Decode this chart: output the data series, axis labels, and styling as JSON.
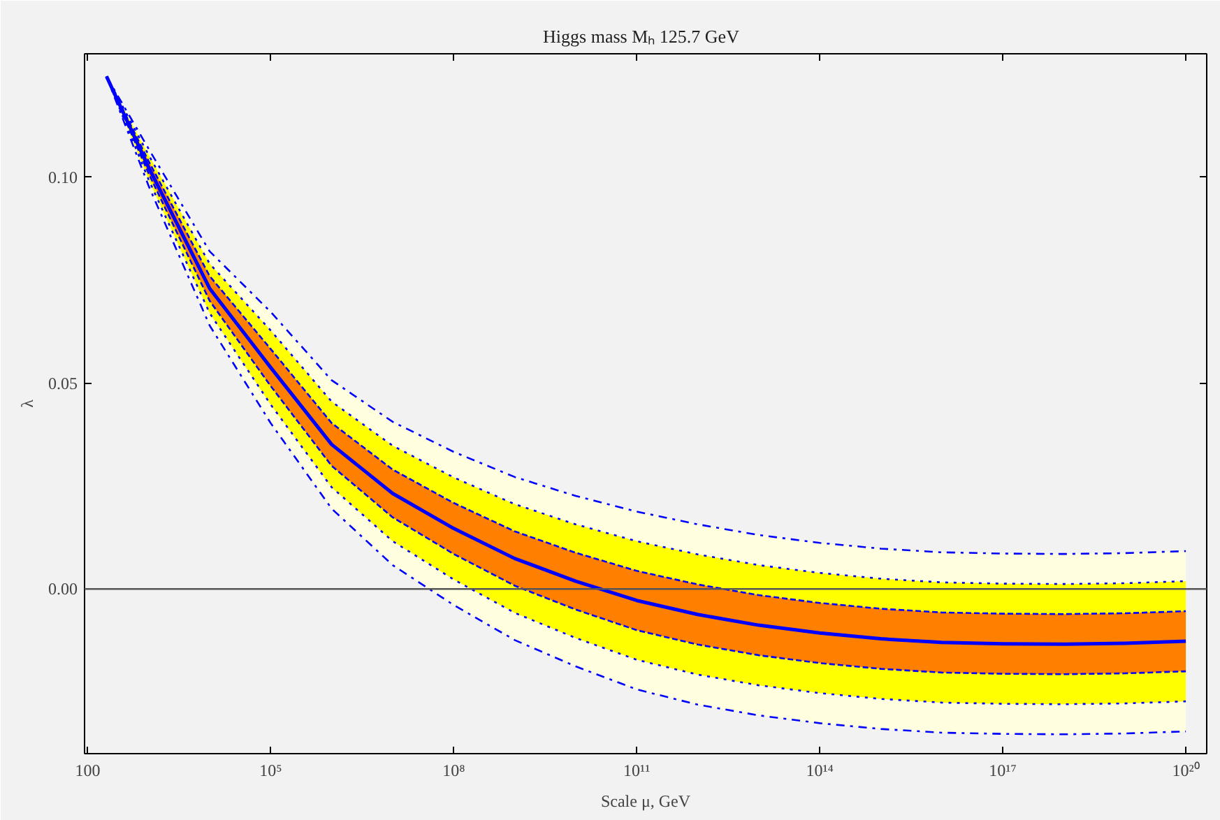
{
  "chart_data": {
    "type": "line",
    "title": "Higgs mass Mₕ   125.7 GeV",
    "xlabel": "Scale μ, GeV",
    "ylabel": "λ",
    "log": "x",
    "x": [
      204,
      1000,
      10000,
      100000,
      1000000,
      10000000,
      100000000,
      1000000000,
      10000000000,
      100000000000,
      1000000000000,
      10000000000000,
      100000000000000,
      1000000000000000,
      1e+16,
      1e+17,
      1e+18,
      1e+19,
      1e+20
    ],
    "xlim": [
      89,
      2.2e+20
    ],
    "ylim": [
      -0.04,
      0.13
    ],
    "xticks": [
      100,
      {
        "value": 100000,
        "label": "10⁵"
      },
      {
        "value": 100000000,
        "label": "10⁸"
      },
      {
        "value": 100000000000,
        "label": "10¹¹"
      },
      {
        "value": 100000000000000,
        "label": "10¹⁴"
      },
      {
        "value": 1e+17,
        "label": "10¹⁷"
      },
      {
        "value": 1e+20,
        "label": "10²⁰"
      }
    ],
    "yticks": [
      {
        "value": 0,
        "label": "0.00"
      },
      {
        "value": 0.05,
        "label": "0.05"
      },
      {
        "value": 0.1,
        "label": "0.10"
      }
    ],
    "ref_lines": [
      {
        "axis": "y",
        "value": 0,
        "color": "#555555",
        "line_style": "solid"
      }
    ],
    "colors": [
      "#ffffe0",
      "#ffff00",
      "#ff8000"
    ],
    "series": [
      {
        "color": "#0000ff",
        "line_style": "dashdot",
        "values": [
          0.1245,
          0.0979,
          0.064,
          0.0403,
          0.0195,
          0.0058,
          -0.0039,
          -0.0124,
          -0.0188,
          -0.0244,
          -0.0281,
          -0.0307,
          -0.0326,
          -0.034,
          -0.0349,
          -0.0352,
          -0.0353,
          -0.0351,
          -0.0346
        ]
      },
      {
        "color": "#0000ff",
        "line_style": "dotted",
        "values": [
          0.1245,
          0.0994,
          0.067,
          0.0448,
          0.0247,
          0.0116,
          0.0023,
          -0.0058,
          -0.0119,
          -0.0172,
          -0.0208,
          -0.0234,
          -0.0253,
          -0.0267,
          -0.0276,
          -0.0279,
          -0.028,
          -0.0278,
          -0.0273
        ]
      },
      {
        "color": "#0000ff",
        "line_style": "dashed",
        "values": [
          0.1245,
          0.1009,
          0.07,
          0.0493,
          0.0299,
          0.0174,
          0.0085,
          0.0008,
          -0.005,
          -0.01,
          -0.0135,
          -0.0161,
          -0.018,
          -0.0194,
          -0.0203,
          -0.0206,
          -0.0207,
          -0.0205,
          -0.02
        ]
      },
      {
        "color": "#0000ff",
        "line_style": "solid",
        "values": [
          0.1245,
          0.1024,
          0.073,
          0.0538,
          0.0351,
          0.0232,
          0.0147,
          0.0074,
          0.0019,
          -0.0028,
          -0.0062,
          -0.0088,
          -0.0107,
          -0.0121,
          -0.013,
          -0.0133,
          -0.0134,
          -0.0132,
          -0.0127
        ]
      },
      {
        "color": "#0000ff",
        "line_style": "dashed",
        "values": [
          0.1245,
          0.1039,
          0.076,
          0.0583,
          0.0403,
          0.029,
          0.0209,
          0.014,
          0.0088,
          0.0044,
          0.0011,
          -0.0015,
          -0.0034,
          -0.0048,
          -0.0057,
          -0.006,
          -0.0061,
          -0.0059,
          -0.0054
        ]
      },
      {
        "color": "#0000ff",
        "line_style": "dotted",
        "values": [
          0.1245,
          0.1054,
          0.079,
          0.0628,
          0.0455,
          0.0348,
          0.0271,
          0.0206,
          0.0157,
          0.0116,
          0.0084,
          0.0058,
          0.0039,
          0.0025,
          0.0016,
          0.0013,
          0.0012,
          0.0014,
          0.0019
        ]
      },
      {
        "color": "#0000ff",
        "line_style": "dashdot",
        "values": [
          0.1245,
          0.1069,
          0.082,
          0.0673,
          0.0507,
          0.0406,
          0.0333,
          0.0272,
          0.0226,
          0.0188,
          0.0157,
          0.0131,
          0.0112,
          0.0098,
          0.0089,
          0.0086,
          0.0085,
          0.0087,
          0.0092
        ]
      }
    ]
  }
}
